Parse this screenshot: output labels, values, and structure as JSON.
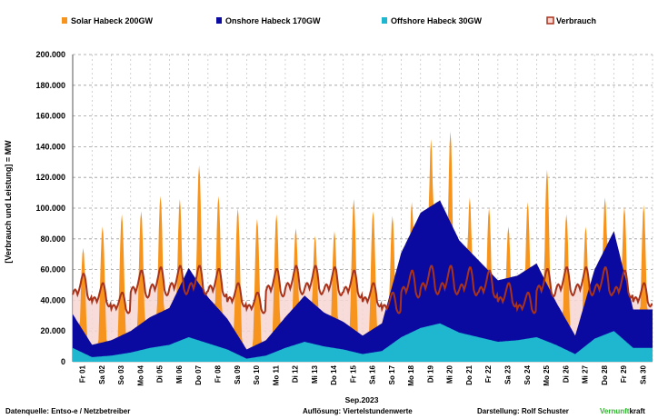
{
  "chart_data": {
    "type": "area",
    "title": "",
    "ylabel": "[Verbrauch und Leistung] =  MW",
    "xlabel": "Sep.2023",
    "ylim": [
      0,
      200000
    ],
    "yticks": [
      "0",
      "20.000",
      "40.000",
      "60.000",
      "80.000",
      "100.000",
      "120.000",
      "140.000",
      "160.000",
      "180.000",
      "200.000"
    ],
    "ytick_values": [
      0,
      20000,
      40000,
      60000,
      80000,
      100000,
      120000,
      140000,
      160000,
      180000,
      200000
    ],
    "grid": true,
    "legend_position": "top",
    "categories": [
      "Fr 01",
      "Sa 02",
      "So 03",
      "Mo 04",
      "Di 05",
      "Mi 06",
      "Do 07",
      "Fr 08",
      "Sa 09",
      "So 10",
      "Mo 11",
      "Di 12",
      "Mi 13",
      "Do 14",
      "Fr 15",
      "Sa 16",
      "So 17",
      "Mo 18",
      "Di 19",
      "Mi 20",
      "Do 21",
      "Fr 22",
      "Sa 23",
      "So 24",
      "Mo 25",
      "Di 26",
      "Mi 27",
      "Do 28",
      "Fr 29",
      "Sa 30"
    ],
    "series": [
      {
        "name": "Solar Habeck 200GW",
        "color": "#f7941d",
        "values": [
          74000,
          88000,
          96000,
          98000,
          108000,
          106000,
          128000,
          108000,
          100000,
          93000,
          96000,
          87000,
          82000,
          85000,
          106000,
          98000,
          95000,
          104000,
          145000,
          150000,
          107000,
          100000,
          88000,
          104000,
          125000,
          96000,
          88000,
          107000,
          101000,
          102000
        ]
      },
      {
        "name": "Onshore Habeck 170GW",
        "color": "#0a0aa0",
        "values": [
          22000,
          8000,
          10000,
          14000,
          20000,
          24000,
          45000,
          30000,
          20000,
          6000,
          10000,
          20000,
          30000,
          22000,
          18000,
          12000,
          18000,
          55000,
          75000,
          80000,
          60000,
          50000,
          40000,
          42000,
          48000,
          28000,
          12000,
          45000,
          65000,
          25000
        ]
      },
      {
        "name": "Offshore Habeck 30GW",
        "color": "#1fb6cf",
        "values": [
          9000,
          3000,
          4000,
          6000,
          9000,
          11000,
          16000,
          12000,
          8000,
          2000,
          4000,
          9000,
          13000,
          10000,
          8000,
          5000,
          7000,
          16000,
          22000,
          25000,
          19000,
          16000,
          13000,
          14000,
          16000,
          11000,
          5000,
          15000,
          20000,
          9000
        ]
      },
      {
        "name": "Verbrauch",
        "color": "#a8331a",
        "values": [
          56000,
          50000,
          44000,
          58000,
          60000,
          61000,
          61000,
          59000,
          50000,
          44000,
          59000,
          61000,
          61000,
          60000,
          58000,
          50000,
          44000,
          58000,
          61000,
          61000,
          60000,
          58000,
          50000,
          44000,
          59000,
          60000,
          60000,
          60000,
          58000,
          50000
        ]
      }
    ]
  },
  "footer": {
    "source": "Datenquelle: Entso-e  / Netzbetreiber",
    "resolution": "Auflösung: Viertelstundenwerte",
    "author": "Darstellung:  Rolf Schuster",
    "brand_a": "Vernunft",
    "brand_b": "kraft"
  }
}
